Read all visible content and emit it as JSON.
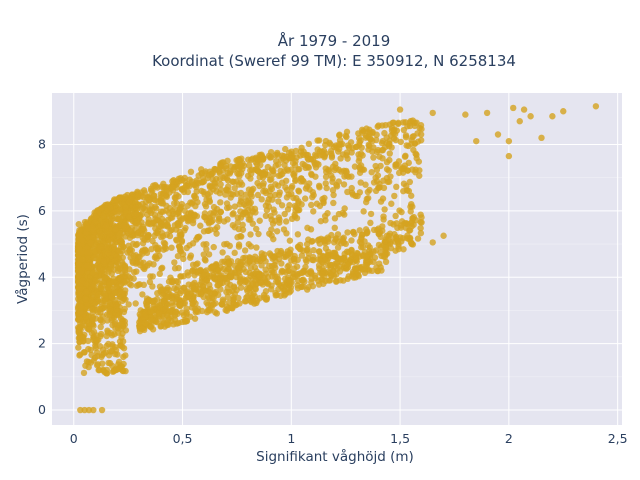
{
  "chart_data": {
    "type": "scatter",
    "title_line1": "År 1979 - 2019",
    "title_line2": "Koordinat (Sweref 99 TM): E 350912, N 6258134",
    "xlabel": "Signifikant våghöjd (m)",
    "ylabel": "Vågperiod (s)",
    "xlim": [
      -0.1,
      2.52
    ],
    "ylim": [
      -0.45,
      9.55
    ],
    "x_ticks": [
      0,
      0.5,
      1,
      1.5,
      2,
      2.5
    ],
    "x_tick_labels": [
      "0",
      "0,5",
      "1",
      "1,5",
      "2",
      "2,5"
    ],
    "y_ticks": [
      0,
      2,
      4,
      6,
      8
    ],
    "y_tick_labels": [
      "0",
      "2",
      "4",
      "6",
      "8"
    ],
    "grid": true,
    "legend": "none",
    "colors": {
      "marker": "#d4a21f",
      "plot_background": "#e5e5f0",
      "grid": "#ffffff",
      "text": "#2a3f5f"
    },
    "series": [
      {
        "marker_opacity": 0.8,
        "envelope_main": [
          {
            "x": 0.02,
            "y_low": 1.2,
            "y_high": 5.3
          },
          {
            "x": 0.1,
            "y_low": 1.1,
            "y_high": 6.0
          },
          {
            "x": 0.2,
            "y_low": 1.6,
            "y_high": 6.4
          },
          {
            "x": 0.3,
            "y_low": 2.3,
            "y_high": 6.6
          },
          {
            "x": 0.5,
            "y_low": 3.2,
            "y_high": 7.1
          },
          {
            "x": 0.7,
            "y_low": 3.6,
            "y_high": 7.5
          },
          {
            "x": 1.0,
            "y_low": 4.0,
            "y_high": 7.9
          },
          {
            "x": 1.2,
            "y_low": 4.4,
            "y_high": 8.3
          },
          {
            "x": 1.4,
            "y_low": 4.6,
            "y_high": 8.6
          },
          {
            "x": 1.6,
            "y_low": 5.0,
            "y_high": 8.8
          }
        ],
        "sample_points": [
          {
            "x": 0.03,
            "y": 0.0
          },
          {
            "x": 0.05,
            "y": 0.0
          },
          {
            "x": 0.07,
            "y": 0.0
          },
          {
            "x": 0.09,
            "y": 0.0
          },
          {
            "x": 0.13,
            "y": 0.0
          },
          {
            "x": 1.45,
            "y": 5.15
          },
          {
            "x": 1.55,
            "y": 5.05
          },
          {
            "x": 1.65,
            "y": 5.05
          },
          {
            "x": 1.7,
            "y": 5.25
          },
          {
            "x": 1.5,
            "y": 9.05
          },
          {
            "x": 1.65,
            "y": 8.95
          },
          {
            "x": 1.8,
            "y": 8.9
          },
          {
            "x": 1.9,
            "y": 8.95
          },
          {
            "x": 1.95,
            "y": 8.3
          },
          {
            "x": 2.0,
            "y": 8.1
          },
          {
            "x": 2.0,
            "y": 7.65
          },
          {
            "x": 2.05,
            "y": 8.7
          },
          {
            "x": 2.1,
            "y": 8.85
          },
          {
            "x": 2.02,
            "y": 9.1
          },
          {
            "x": 2.15,
            "y": 8.2
          },
          {
            "x": 2.2,
            "y": 8.85
          },
          {
            "x": 2.25,
            "y": 9.0
          },
          {
            "x": 2.4,
            "y": 9.15
          },
          {
            "x": 2.07,
            "y": 9.05
          },
          {
            "x": 1.85,
            "y": 8.1
          }
        ]
      }
    ]
  }
}
